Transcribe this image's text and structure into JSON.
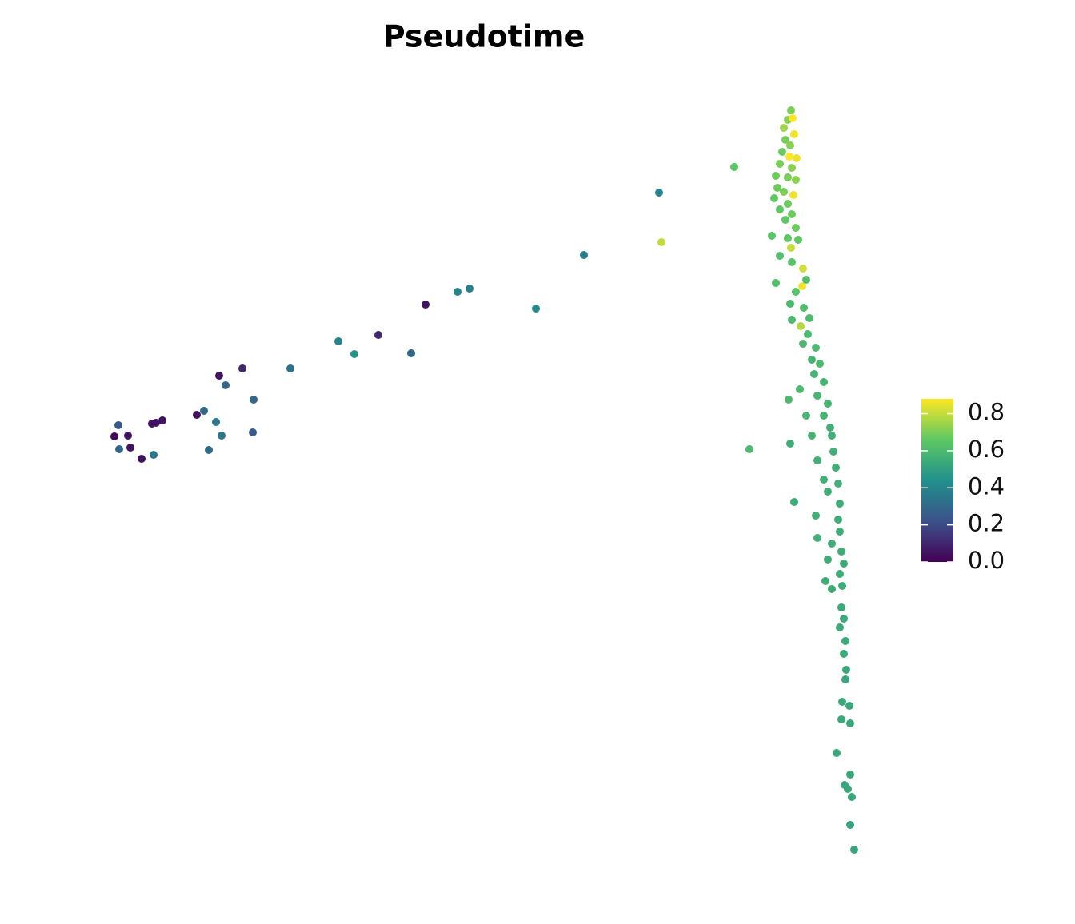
{
  "chart_data": {
    "type": "scatter",
    "title": "Pseudotime",
    "xlim": [
      0,
      95
    ],
    "ylim": [
      0,
      95
    ],
    "colormap": "viridis",
    "colorbar": {
      "clim": [
        0,
        0.88
      ],
      "ticks": [
        {
          "value": 0,
          "label": "0.0"
        },
        {
          "value": 0.2,
          "label": "0.2"
        },
        {
          "value": 0.4,
          "label": "0.4"
        },
        {
          "value": 0.6,
          "label": "0.6"
        },
        {
          "value": 0.8,
          "label": "0.8"
        }
      ]
    },
    "x": [
      1.8,
      1.3,
      3,
      1.9,
      3.3,
      4.7,
      6.2,
      6,
      6.5,
      7.3,
      11.6,
      12.5,
      14,
      14.7,
      13.1,
      14.4,
      15.2,
      17.3,
      18.7,
      18.6,
      23.3,
      29.3,
      31.3,
      34.3,
      38.4,
      40.2,
      44.2,
      45.7,
      54,
      60,
      69.4,
      78.8,
      69.7,
      80.7,
      85.8,
      86.3,
      85.6,
      85.9,
      85.5,
      86.1,
      85,
      86.3,
      85.2,
      85.8,
      84.8,
      86.6,
      85.7,
      84.5,
      86,
      84,
      85.5,
      86.5,
      84.2,
      85,
      86.2,
      83.8,
      85.5,
      84.5,
      86,
      85.2,
      86.5,
      83.5,
      85.5,
      86.8,
      85.9,
      84.5,
      86,
      87.4,
      84,
      87.3,
      86.5,
      87.8,
      85.8,
      87.5,
      88.2,
      86,
      87.1,
      88,
      87.4,
      89,
      88.5,
      89.5,
      88.8,
      90,
      87,
      89.2,
      90.5,
      87.8,
      90,
      90.8,
      88.5,
      91,
      91.2,
      89.2,
      91.5,
      90,
      91.8,
      90.5,
      92,
      89,
      91.8,
      92,
      89.2,
      91,
      92.2,
      90.5,
      92.5,
      92,
      90.2,
      91,
      92.3,
      92.2,
      92.5,
      92,
      92.7,
      92.5,
      92.8,
      92.7,
      92.3,
      93.2,
      92.2,
      93.3,
      91.6,
      93.3,
      92.6,
      93,
      93.5,
      93.3,
      93.8
    ],
    "values": [
      54.8,
      53.4,
      53.5,
      51.8,
      52,
      50.6,
      51.1,
      55,
      55.1,
      55.4,
      56.1,
      56.6,
      55.2,
      53.5,
      51.7,
      61,
      59.8,
      61.9,
      58,
      53.9,
      61.9,
      65.3,
      63.7,
      66.1,
      63.8,
      69.9,
      71.5,
      71.9,
      69.4,
      76.1,
      83.9,
      87.1,
      77.7,
      51.8,
      52.5,
      45.2,
      58,
      94.2,
      93,
      93.2,
      92,
      91.2,
      90.5,
      89.8,
      89,
      88.2,
      88.4,
      87.5,
      87,
      86,
      85.8,
      85.5,
      84.5,
      84,
      83.6,
      83.2,
      82.5,
      81.8,
      81.2,
      80.5,
      79.5,
      78.5,
      78.2,
      78,
      77,
      76,
      75.2,
      74.4,
      72.6,
      72.2,
      71.5,
      73,
      70,
      69.5,
      68.2,
      68,
      67.2,
      66.2,
      65,
      64.5,
      63,
      62.5,
      61.2,
      60.2,
      59.3,
      58.5,
      57.5,
      56,
      56,
      54.5,
      53.5,
      53.5,
      51.5,
      50.4,
      49.5,
      48,
      47.5,
      46.5,
      45,
      43.5,
      43,
      41.5,
      40.7,
      40,
      39,
      38,
      37.5,
      36.2,
      35.3,
      34.3,
      34.7,
      32,
      30.6,
      29.5,
      27.8,
      26.2,
      24.2,
      23,
      20.2,
      19.7,
      18,
      17.5,
      13.8,
      11.1,
      9.8,
      9.3,
      8.3,
      4.8,
      1.7
    ],
    "color_values": [
      0.25,
      0.02,
      0.05,
      0.3,
      0.05,
      0.05,
      0.35,
      0.05,
      0.05,
      0.05,
      0.05,
      0.3,
      0.35,
      0.35,
      0.3,
      0.05,
      0.3,
      0.1,
      0.3,
      0.25,
      0.33,
      0.4,
      0.45,
      0.1,
      0.3,
      0.05,
      0.4,
      0.38,
      0.42,
      0.38,
      0.4,
      0.65,
      0.8,
      0.6,
      0.55,
      0.55,
      0.6,
      0.7,
      0.72,
      0.88,
      0.75,
      0.86,
      0.7,
      0.72,
      0.68,
      0.86,
      0.88,
      0.7,
      0.72,
      0.68,
      0.7,
      0.72,
      0.68,
      0.7,
      0.86,
      0.66,
      0.68,
      0.66,
      0.68,
      0.66,
      0.68,
      0.64,
      0.66,
      0.66,
      0.8,
      0.62,
      0.64,
      0.82,
      0.62,
      0.86,
      0.64,
      0.62,
      0.6,
      0.62,
      0.6,
      0.6,
      0.78,
      0.6,
      0.6,
      0.6,
      0.58,
      0.6,
      0.58,
      0.58,
      0.6,
      0.58,
      0.58,
      0.58,
      0.58,
      0.56,
      0.58,
      0.56,
      0.56,
      0.56,
      0.56,
      0.56,
      0.56,
      0.56,
      0.55,
      0.56,
      0.55,
      0.55,
      0.56,
      0.55,
      0.55,
      0.55,
      0.55,
      0.55,
      0.55,
      0.55,
      0.55,
      0.54,
      0.54,
      0.54,
      0.54,
      0.54,
      0.54,
      0.53,
      0.54,
      0.53,
      0.54,
      0.53,
      0.53,
      0.53,
      0.53,
      0.53,
      0.53,
      0.52,
      0.52
    ]
  }
}
